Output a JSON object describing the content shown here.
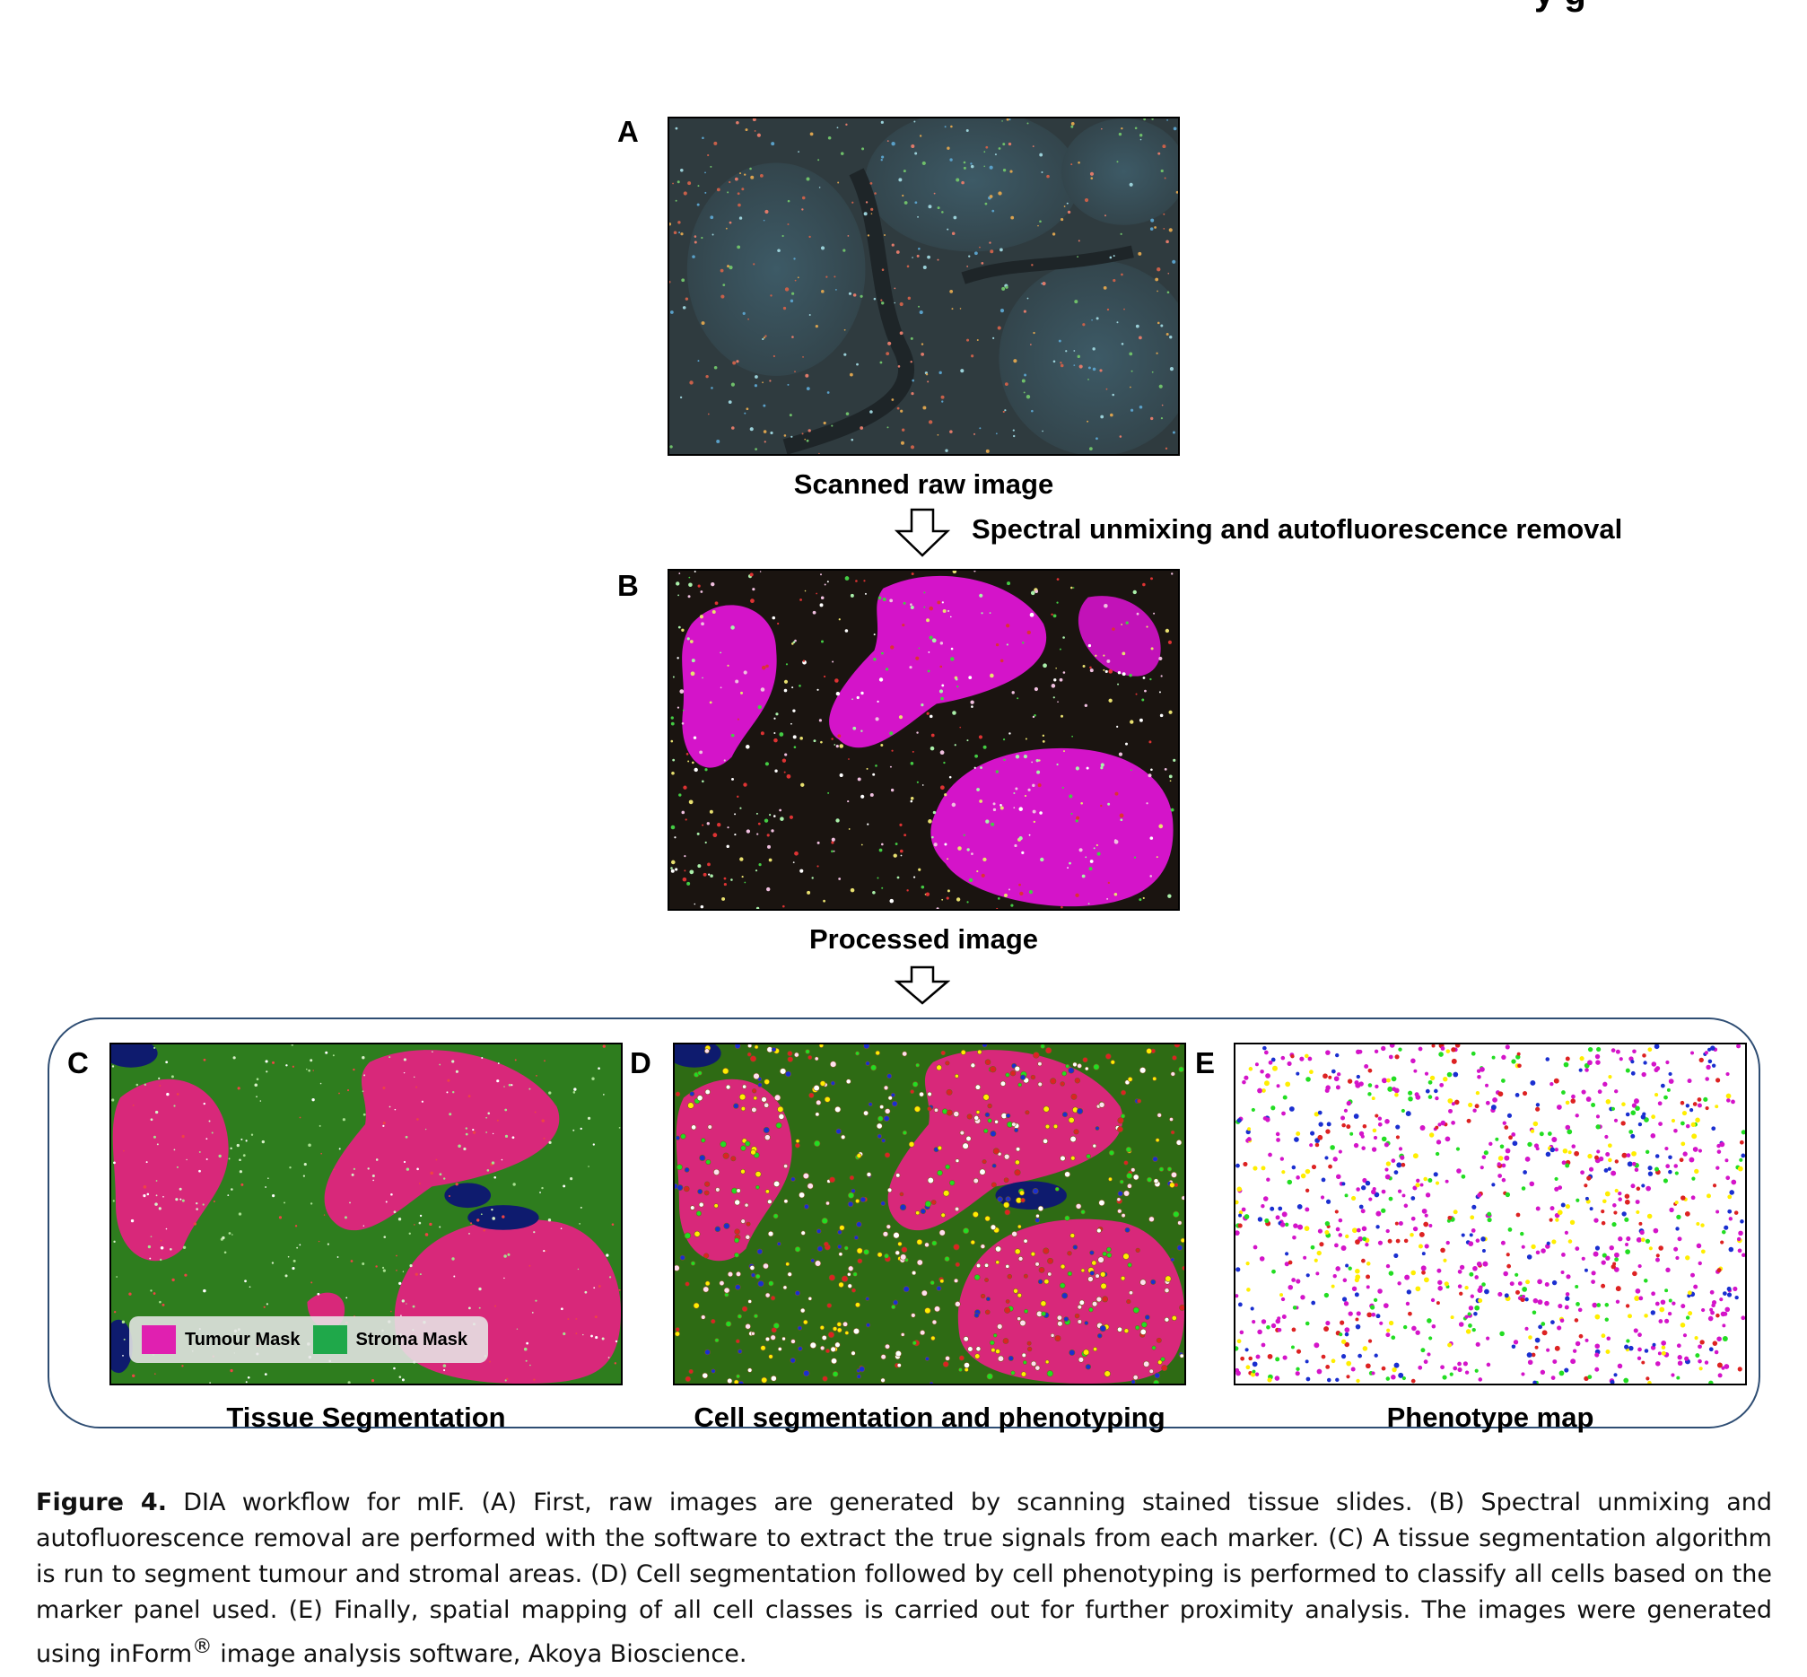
{
  "header_fragment": "y g",
  "panels": {
    "a": {
      "letter": "A",
      "label": "Scanned raw image"
    },
    "b": {
      "letter": "B",
      "label": "Processed image"
    },
    "c": {
      "letter": "C",
      "label": "Tissue Segmentation"
    },
    "d": {
      "letter": "D",
      "label": "Cell segmentation and phenotyping"
    },
    "e": {
      "letter": "E",
      "label": "Phenotype map"
    }
  },
  "step_label": "Spectral unmixing and autofluorescence removal",
  "legend": {
    "tumour": {
      "label": "Tumour Mask",
      "color": "#e020b0"
    },
    "stroma": {
      "label": "Stroma Mask",
      "color": "#1fa84a"
    }
  },
  "colors": {
    "magenta": "#d414c9",
    "tumour_pink": "#d8287a",
    "stroma_green": "#2e7d1e",
    "blue": "#1a2fd0",
    "yellow": "#ffee00",
    "green_dot": "#22dd22",
    "red_dot": "#dd2222",
    "frame": "#2e4d73"
  },
  "caption": {
    "figure_label": "Figure 4.",
    "text_1": " DIA workflow for mIF. (A) First, raw images are generated by scanning stained tissue slides. (B) Spectral unmixing and autofluorescence removal are performed with the software to extract the true signals from each marker. (C) A tissue segmentation algorithm is run to segment tumour and stromal areas. (D) Cell segmentation followed by cell phenotyping is performed to classify all cells based on the marker panel used. (E) Finally, spatial mapping of all cell classes is carried out for further proximity analysis. The images were generated using inForm",
    "superscript": "®",
    "text_2": " image analysis software, Akoya Bioscience."
  }
}
